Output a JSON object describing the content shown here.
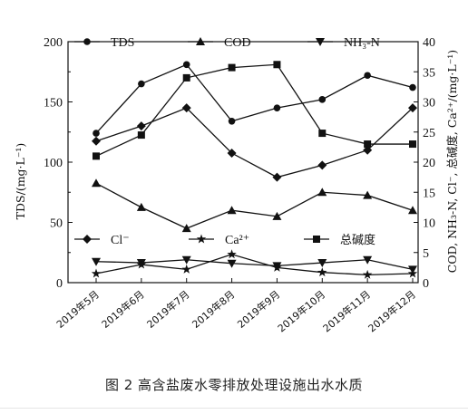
{
  "caption": "图 2 高含盐废水零排放处理设施出水水质",
  "chart_data": {
    "type": "line",
    "categories": [
      "2019年5月",
      "2019年6月",
      "2019年7月",
      "2019年8月",
      "2019年9月",
      "2019年10月",
      "2019年11月",
      "2019年12月"
    ],
    "ylabel_left": "TDS/(mg·L⁻¹)",
    "ylabel_right": "COD, NH₃-N, Cl⁻, 总碱度, Ca²⁺/(mg·L⁻¹)",
    "ylim_left": [
      0,
      200
    ],
    "ylim_right": [
      0,
      40
    ],
    "yticks_left": [
      "0",
      "50",
      "100",
      "150",
      "200"
    ],
    "yticks_right": [
      "0",
      "5",
      "10",
      "15",
      "20",
      "25",
      "30",
      "35",
      "40"
    ],
    "legend_location": "top and lower-middle inside plot",
    "series": [
      {
        "name": "TDS",
        "axis": "left",
        "marker": "circle",
        "values": [
          124,
          165,
          181,
          134,
          145,
          152,
          172,
          162
        ]
      },
      {
        "name": "COD",
        "axis": "right",
        "marker": "triangle-up",
        "values": [
          16.5,
          12.5,
          9.0,
          12.0,
          11.0,
          15.0,
          14.5,
          12.0
        ]
      },
      {
        "name": "NH₃-N",
        "axis": "right",
        "marker": "triangle-down",
        "values": [
          3.5,
          3.3,
          3.8,
          3.2,
          2.8,
          3.3,
          3.8,
          2.2
        ]
      },
      {
        "name": "Cl⁻",
        "axis": "right",
        "marker": "diamond",
        "values": [
          23.5,
          26.0,
          29.0,
          21.5,
          17.5,
          19.5,
          22.0,
          29.0
        ]
      },
      {
        "name": "Ca²⁺",
        "axis": "right",
        "marker": "star",
        "values": [
          1.5,
          3.0,
          2.2,
          4.7,
          2.5,
          1.7,
          1.3,
          1.5
        ]
      },
      {
        "name": "总碱度",
        "axis": "right",
        "marker": "square",
        "values": [
          21.0,
          24.5,
          34.0,
          35.7,
          36.2,
          24.8,
          23.0,
          23.0
        ]
      }
    ]
  }
}
